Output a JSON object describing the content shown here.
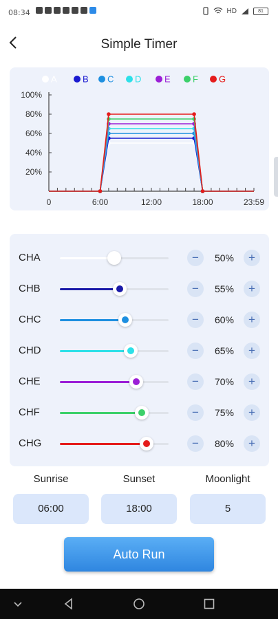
{
  "status_bar": {
    "time": "08:34",
    "signal_text": "HD",
    "battery": "81"
  },
  "header": {
    "title": "Simple Timer",
    "back_icon": "back-arrow-icon"
  },
  "chart_data": {
    "type": "line",
    "legend": [
      {
        "name": "A",
        "color": "#ffffff"
      },
      {
        "name": "B",
        "color": "#1a1ad0"
      },
      {
        "name": "C",
        "color": "#1e8fe0"
      },
      {
        "name": "D",
        "color": "#2de0e8"
      },
      {
        "name": "E",
        "color": "#9b1fd6"
      },
      {
        "name": "F",
        "color": "#3cd06a"
      },
      {
        "name": "G",
        "color": "#e51c1c"
      }
    ],
    "y_ticks": [
      "100%",
      "80%",
      "60%",
      "40%",
      "20%"
    ],
    "x_ticks": [
      "0",
      "6:00",
      "12:00",
      "18:00",
      "23:59"
    ],
    "ylim": [
      0,
      100
    ],
    "xlim": [
      0,
      24
    ],
    "x_points": [
      0,
      6,
      7,
      17,
      18,
      24
    ],
    "series": [
      {
        "name": "A",
        "values": [
          0,
          0,
          50,
          50,
          0,
          0
        ]
      },
      {
        "name": "B",
        "values": [
          0,
          0,
          55,
          55,
          0,
          0
        ]
      },
      {
        "name": "C",
        "values": [
          0,
          0,
          60,
          60,
          0,
          0
        ]
      },
      {
        "name": "D",
        "values": [
          0,
          0,
          65,
          65,
          0,
          0
        ]
      },
      {
        "name": "E",
        "values": [
          0,
          0,
          70,
          70,
          0,
          0
        ]
      },
      {
        "name": "F",
        "values": [
          0,
          0,
          75,
          75,
          0,
          0
        ]
      },
      {
        "name": "G",
        "values": [
          0,
          0,
          80,
          80,
          0,
          0
        ]
      }
    ]
  },
  "channels": [
    {
      "label": "CHA",
      "percent": "50%",
      "value": 50,
      "color": "#ffffff"
    },
    {
      "label": "CHB",
      "percent": "55%",
      "value": 55,
      "color": "#1a1aa8"
    },
    {
      "label": "CHC",
      "percent": "60%",
      "value": 60,
      "color": "#1e8fe0"
    },
    {
      "label": "CHD",
      "percent": "65%",
      "value": 65,
      "color": "#2de0e8"
    },
    {
      "label": "CHE",
      "percent": "70%",
      "value": 70,
      "color": "#9b1fd6"
    },
    {
      "label": "CHF",
      "percent": "75%",
      "value": 75,
      "color": "#3cd06a"
    },
    {
      "label": "CHG",
      "percent": "80%",
      "value": 80,
      "color": "#e51c1c"
    }
  ],
  "controls": {
    "minus": "−",
    "plus": "+"
  },
  "times": {
    "sunrise_label": "Sunrise",
    "sunrise_value": "06:00",
    "sunset_label": "Sunset",
    "sunset_value": "18:00",
    "moonlight_label": "Moonlight",
    "moonlight_value": "5"
  },
  "auto_run": "Auto Run",
  "nav": {
    "icons": [
      "collapse-icon",
      "back-icon",
      "home-icon",
      "recents-icon"
    ]
  }
}
